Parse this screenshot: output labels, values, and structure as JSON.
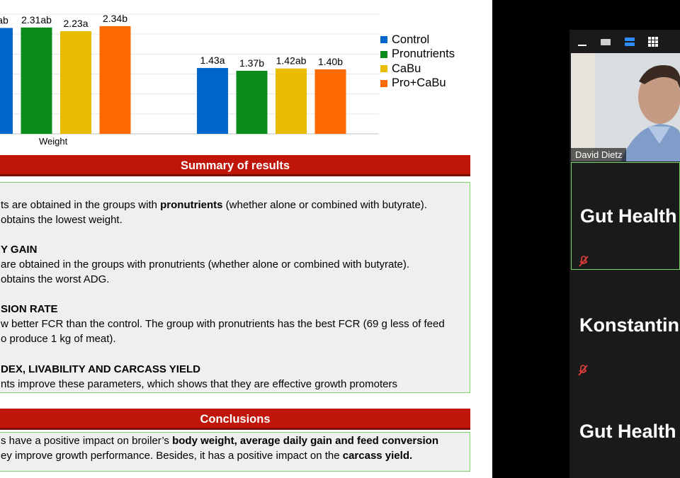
{
  "chart_data": {
    "type": "bar",
    "categories": [
      "Weight",
      ""
    ],
    "series": [
      {
        "name": "Control",
        "color": "#0066cc",
        "values": [
          2.3,
          1.43
        ],
        "labels": [
          "ab",
          "1.43a"
        ]
      },
      {
        "name": "Pronutrients",
        "color": "#0c8a1c",
        "values": [
          2.31,
          1.37
        ],
        "labels": [
          "2.31ab",
          "1.37b"
        ]
      },
      {
        "name": "CaBu",
        "color": "#e8bc00",
        "values": [
          2.23,
          1.42
        ],
        "labels": [
          "2.23a",
          "1.42ab"
        ]
      },
      {
        "name": "Pro+CaBu",
        "color": "#ff6a00",
        "values": [
          2.34,
          1.4
        ],
        "labels": [
          "2.34b",
          "1.40b"
        ]
      }
    ],
    "xlabel": "Weight"
  },
  "slide": {
    "summary_title": "Summary of results",
    "summary_lines": [
      {
        "pre": "ts are obtained in the groups with ",
        "bold": "pronutrients",
        "post": " (whether alone or combined with butyrate)."
      },
      {
        "pre": "obtains the lowest weight.",
        "bold": "",
        "post": ""
      },
      {
        "pre": "",
        "bold": "Y GAIN",
        "post": ""
      },
      {
        "pre": "are obtained in the groups with pronutrients (whether alone or combined with butyrate).",
        "bold": "",
        "post": ""
      },
      {
        "pre": "obtains the worst ADG.",
        "bold": "",
        "post": ""
      },
      {
        "pre": "",
        "bold": "SION RATE",
        "post": ""
      },
      {
        "pre": "w better FCR than the control. The group with pronutrients has the best FCR (69 g less of feed",
        "bold": "",
        "post": ""
      },
      {
        "pre": "o produce 1 kg of meat).",
        "bold": "",
        "post": ""
      },
      {
        "pre": "",
        "bold": "DEX, LIVABILITY AND CARCASS YIELD",
        "post": ""
      },
      {
        "pre": "nts improve these parameters, which shows that they are effective growth promoters",
        "bold": "",
        "post": ""
      }
    ],
    "conclusions_title": "Conclusions",
    "conclusion_lines": [
      {
        "pre": "s have a positive impact on broiler’s ",
        "bold": "body weight, average daily gain and feed conversion",
        "post": ""
      },
      {
        "pre": "ey improve growth performance. Besides, it has a positive impact on the ",
        "bold": "carcass yield.",
        "post": ""
      }
    ]
  },
  "video": {
    "participants": [
      {
        "name": "David Dietz",
        "type": "video"
      },
      {
        "name": "Gut Health",
        "type": "tile",
        "muted": true
      },
      {
        "name": "Konstantin",
        "type": "tile",
        "muted": true
      },
      {
        "name": "Gut Health",
        "type": "tile",
        "muted": false
      }
    ],
    "toolbar_icons": [
      "minimize-icon",
      "window-icon",
      "speaker-view-icon",
      "gallery-view-icon"
    ],
    "accent_color": "#2d8cff"
  }
}
